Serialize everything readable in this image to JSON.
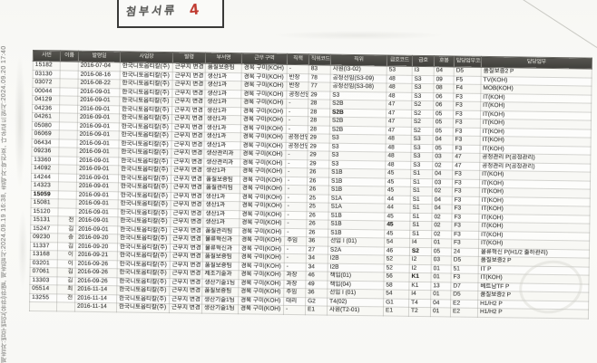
{
  "stamp": {
    "label": "첨부서류",
    "number": "4"
  },
  "watermark": "제출자:법무법인(유한)한별, 제출일시:2024.09.19 16:38, 출력자:박진호, 다운로드일시:2024.09.20 17:40",
  "table": {
    "columns": [
      "사번",
      "이름",
      "발령일",
      "사업장",
      "발령",
      "부서명",
      "근무 구역",
      "직책",
      "직위코드",
      "직위",
      "급호코드",
      "급호",
      "호봉",
      "담당업무코드",
      "담당업무"
    ],
    "rows": [
      [
        "15182",
        "",
        "2016-07-04",
        "한국니토옵티칼(주)",
        "근무지 변경",
        "품질보증팀",
        "경북 구미(KOH)",
        "-",
        "83",
        "사원(I3-02)",
        "53",
        "I3",
        "04",
        "D5",
        "품질보증2 P"
      ],
      [
        "03130",
        "",
        "2016-08-16",
        "한국니토옵티칼(주)",
        "근무지 변경",
        "생산1과",
        "경북 구미(KOH)",
        "반장",
        "78",
        "공정선임(S3-09)",
        "48",
        "S3",
        "09",
        "F5",
        "TV(KOH)"
      ],
      [
        "03072",
        "",
        "2016-08-22",
        "한국니토옵티칼(주)",
        "근무지 변경",
        "생산1과",
        "경북 구미(KOH)",
        "반장",
        "77",
        "공정선임(S3-08)",
        "48",
        "S3",
        "08",
        "F4",
        "MOB(KOH)"
      ],
      [
        "00044",
        "",
        "2016-09-01",
        "한국니토옵티칼(주)",
        "근무지 변경",
        "생산1과",
        "경북 구미(KOH)",
        "공정선임",
        "29",
        "S3",
        "48",
        "S3",
        "06",
        "F3",
        "IT(KOH)"
      ],
      [
        "04129",
        "",
        "2016-09-01",
        "한국니토옵티칼(주)",
        "근무지 변경",
        "생산1과",
        "경북 구미(KOH)",
        "-",
        "28",
        "S2B",
        "47",
        "S2",
        "06",
        "F3",
        "IT(KOH)"
      ],
      [
        "04236",
        "",
        "2016-09-01",
        "한국니토옵티칼(주)",
        "근무지 변경",
        "생산1과",
        "경북 구미(KOH)",
        "-",
        "28",
        "S2B",
        "47",
        "S2",
        "05",
        "F3",
        "IT(KOH)"
      ],
      [
        "04261",
        "",
        "2016-09-01",
        "한국니토옵티칼(주)",
        "근무지 변경",
        "생산1과",
        "경북 구미(KOH)",
        "-",
        "28",
        "S2B",
        "47",
        "S2",
        "05",
        "F3",
        "IT(KOH)"
      ],
      [
        "05080",
        "",
        "2016-09-01",
        "한국니토옵티칼(주)",
        "근무지 변경",
        "생산1과",
        "경북 구미(KOH)",
        "-",
        "28",
        "S2B",
        "47",
        "S2",
        "05",
        "F3",
        "IT(KOH)"
      ],
      [
        "06069",
        "",
        "2016-09-01",
        "한국니토옵티칼(주)",
        "근무지 변경",
        "생산1과",
        "경북 구미(KOH)",
        "공정선임",
        "29",
        "S3",
        "48",
        "S3",
        "04",
        "F3",
        "IT(KOH)"
      ],
      [
        "06434",
        "",
        "2016-09-01",
        "한국니토옵티칼(주)",
        "근무지 변경",
        "생산1과",
        "경북 구미(KOH)",
        "공정선임",
        "29",
        "S3",
        "48",
        "S3",
        "05",
        "F3",
        "IT(KOH)"
      ],
      [
        "09236",
        "",
        "2016-09-01",
        "한국니토옵티칼(주)",
        "근무지 변경",
        "생산관리과",
        "경북 구미(KOH)",
        "-",
        "29",
        "S3",
        "48",
        "S3",
        "03",
        "47",
        "공정관리 P(공정관리)"
      ],
      [
        "13360",
        "",
        "2016-09-01",
        "한국니토옵티칼(주)",
        "근무지 변경",
        "생산관리과",
        "경북 구미(KOH)",
        "-",
        "29",
        "S3",
        "48",
        "S3",
        "02",
        "47",
        "공정관리 P(공정관리)"
      ],
      [
        "14092",
        "",
        "2016-09-01",
        "한국니토옵티칼(주)",
        "근무지 변경",
        "생산1과",
        "경북 구미(KOH)",
        "-",
        "26",
        "S1B",
        "45",
        "S1",
        "04",
        "F3",
        "IT(KOH)"
      ],
      [
        "14244",
        "",
        "2016-09-01",
        "한국니토옵티칼(주)",
        "근무지 변경",
        "품질보증팀",
        "경북 구미(KOH)",
        "-",
        "26",
        "S1B",
        "45",
        "S1",
        "03",
        "F3",
        "IT(KOH)"
      ],
      [
        "14323",
        "",
        "2016-09-01",
        "한국니토옵티칼(주)",
        "근무지 변경",
        "품질관리팀",
        "경북 구미(KOH)",
        "-",
        "26",
        "S1B",
        "45",
        "S1",
        "02",
        "F3",
        "IT(KOH)"
      ],
      [
        "15059",
        "",
        "2016-09-01",
        "한국니토옵티칼(주)",
        "근무지 변경",
        "생산1과",
        "경북 구미(KOH)",
        "-",
        "25",
        "S1A",
        "44",
        "S1",
        "04",
        "F3",
        "IT(KOH)"
      ],
      [
        "15081",
        "",
        "2016-09-01",
        "한국니토옵티칼(주)",
        "근무지 변경",
        "생산1과",
        "경북 구미(KOH)",
        "-",
        "25",
        "S1A",
        "44",
        "S1",
        "04",
        "F3",
        "IT(KOH)"
      ],
      [
        "15120",
        "",
        "2016-09-01",
        "한국니토옵티칼(주)",
        "근무지 변경",
        "생산1과",
        "경북 구미(KOH)",
        "-",
        "26",
        "S1B",
        "45",
        "S1",
        "02",
        "F3",
        "IT(KOH)"
      ],
      [
        "15131",
        "전",
        "2016-09-01",
        "한국니토옵티칼(주)",
        "근무지 변경",
        "생산1과",
        "경북 구미(KOH)",
        "-",
        "26",
        "S1B",
        "45",
        "S1",
        "02",
        "F3",
        "IT(KOH)"
      ],
      [
        "15247",
        "김",
        "2016-09-01",
        "한국니토옵티칼(주)",
        "근무지 변경",
        "품질관리팀",
        "경북 구미(KOH)",
        "-",
        "26",
        "S1B",
        "45",
        "S1",
        "02",
        "F3",
        "IT(KOH)"
      ],
      [
        "09230",
        "송",
        "2016-09-20",
        "한국니토옵티칼(주)",
        "근무지 변경",
        "물류혁신과",
        "경북 구미(KOH)",
        "주임",
        "36",
        "선임 I (01)",
        "54",
        "I4",
        "01",
        "F3",
        "IT(KOH)"
      ],
      [
        "11337",
        "김",
        "2016-09-20",
        "한국니토옵티칼(주)",
        "근무지 변경",
        "물류혁신과",
        "경북 구미(KOH)",
        "-",
        "27",
        "S2A",
        "46",
        "S2",
        "05",
        "24",
        "물류혁신 P(H1/2 출하관리)"
      ],
      [
        "13168",
        "이",
        "2016-09-21",
        "한국니토옵티칼(주)",
        "근무지 변경",
        "품질보증팀",
        "경북 구미(KOH)",
        "-",
        "34",
        "I2B",
        "52",
        "I2",
        "03",
        "D5",
        "품질보증2 P"
      ],
      [
        "03201",
        "이",
        "2016-09-26",
        "한국니토옵티칼(주)",
        "근무지 변경",
        "품질보증팀",
        "경북 구미(KOH)",
        "-",
        "34",
        "I2B",
        "52",
        "I2",
        "01",
        "51",
        "IT P"
      ],
      [
        "07061",
        "김",
        "2016-09-26",
        "한국니토옵티칼(주)",
        "근무지 변경",
        "제조기술과",
        "경북 구미(KOH)",
        "과장",
        "46",
        "책임(01)",
        "56",
        "K1",
        "01",
        "F3",
        "IT(KOH)"
      ],
      [
        "13303",
        "김",
        "2016-09-26",
        "한국니토옵티칼(주)",
        "근무지 변경",
        "생산기술1팀",
        "경북 구미(KOH)",
        "과장",
        "49",
        "책임(04)",
        "58",
        "K1",
        "13",
        "D7",
        "베트남TF P"
      ],
      [
        "05514",
        "최",
        "2016-11-14",
        "한국니토옵티칼(주)",
        "근무지 변경",
        "품질보증팀",
        "경북 구미(KOH)",
        "주임",
        "36",
        "선임 I (01)",
        "54",
        "I4",
        "01",
        "D5",
        "품질보증2 P"
      ],
      [
        "13255",
        "전",
        "2016-11-14",
        "한국니토옵티칼(주)",
        "근무지 변경",
        "생산기술1팀",
        "경북 구미(KOH)",
        "대리",
        "G2",
        "T4(02)",
        "G1",
        "T4",
        "04",
        "E2",
        "H1/H2 P"
      ],
      [
        "",
        "",
        "2016-11-14",
        "한국니토옵티칼(주)",
        "근무지 변경",
        "생산기술1팀",
        "경북 구미(KOH)",
        "-",
        "E1",
        "사원(T2-01)",
        "E1",
        "T2",
        "01",
        "E2",
        "H1/H2 P"
      ]
    ],
    "bold_cells": [
      [
        5,
        9
      ],
      [
        15,
        0
      ],
      [
        18,
        10
      ],
      [
        21,
        11
      ],
      [
        24,
        11
      ]
    ]
  }
}
